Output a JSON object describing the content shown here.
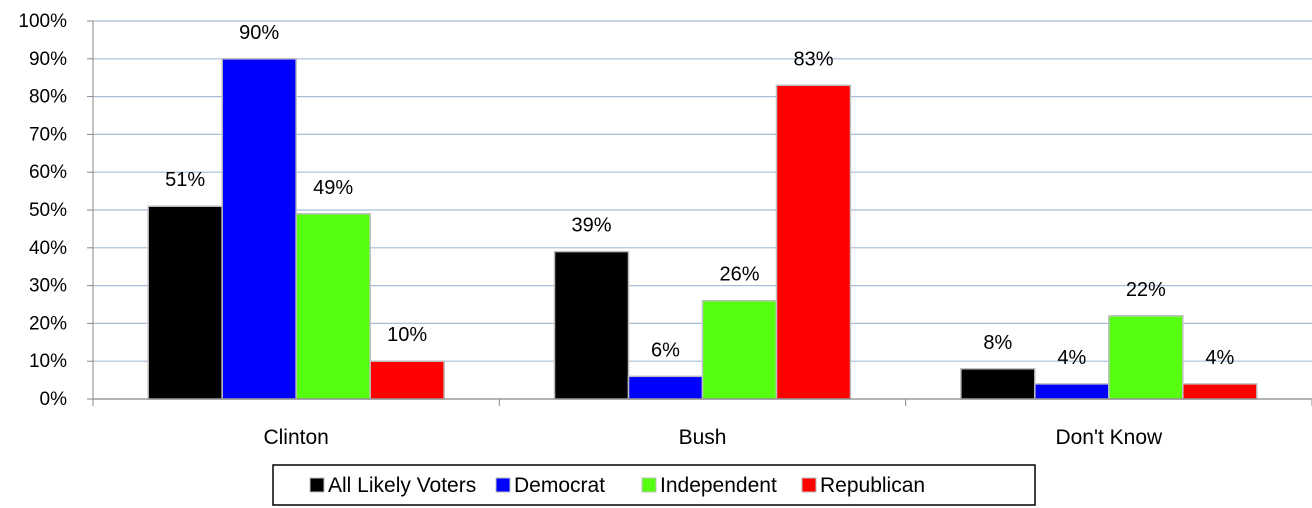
{
  "chart_data": {
    "type": "bar",
    "categories": [
      "Clinton",
      "Bush",
      "Don't Know"
    ],
    "series": [
      {
        "name": "All Likely Voters",
        "values": [
          51,
          39,
          8
        ],
        "color": "#000000"
      },
      {
        "name": "Democrat",
        "values": [
          90,
          6,
          4
        ],
        "color": "#0000FF"
      },
      {
        "name": "Independent",
        "values": [
          49,
          26,
          22
        ],
        "color": "#55FF0F"
      },
      {
        "name": "Republican",
        "values": [
          10,
          83,
          4
        ],
        "color": "#FF0000"
      }
    ],
    "yticks": [
      "0%",
      "10%",
      "20%",
      "30%",
      "40%",
      "50%",
      "60%",
      "70%",
      "80%",
      "90%",
      "100%"
    ],
    "data_labels": [
      [
        "51%",
        "39%",
        "8%"
      ],
      [
        "90%",
        "6%",
        "4%"
      ],
      [
        "49%",
        "26%",
        "22%"
      ],
      [
        "10%",
        "83%",
        "4%"
      ]
    ],
    "ylim": [
      0,
      100
    ],
    "grid": true,
    "gridline_color": "#A9BDD9",
    "legend_position": "bottom"
  }
}
